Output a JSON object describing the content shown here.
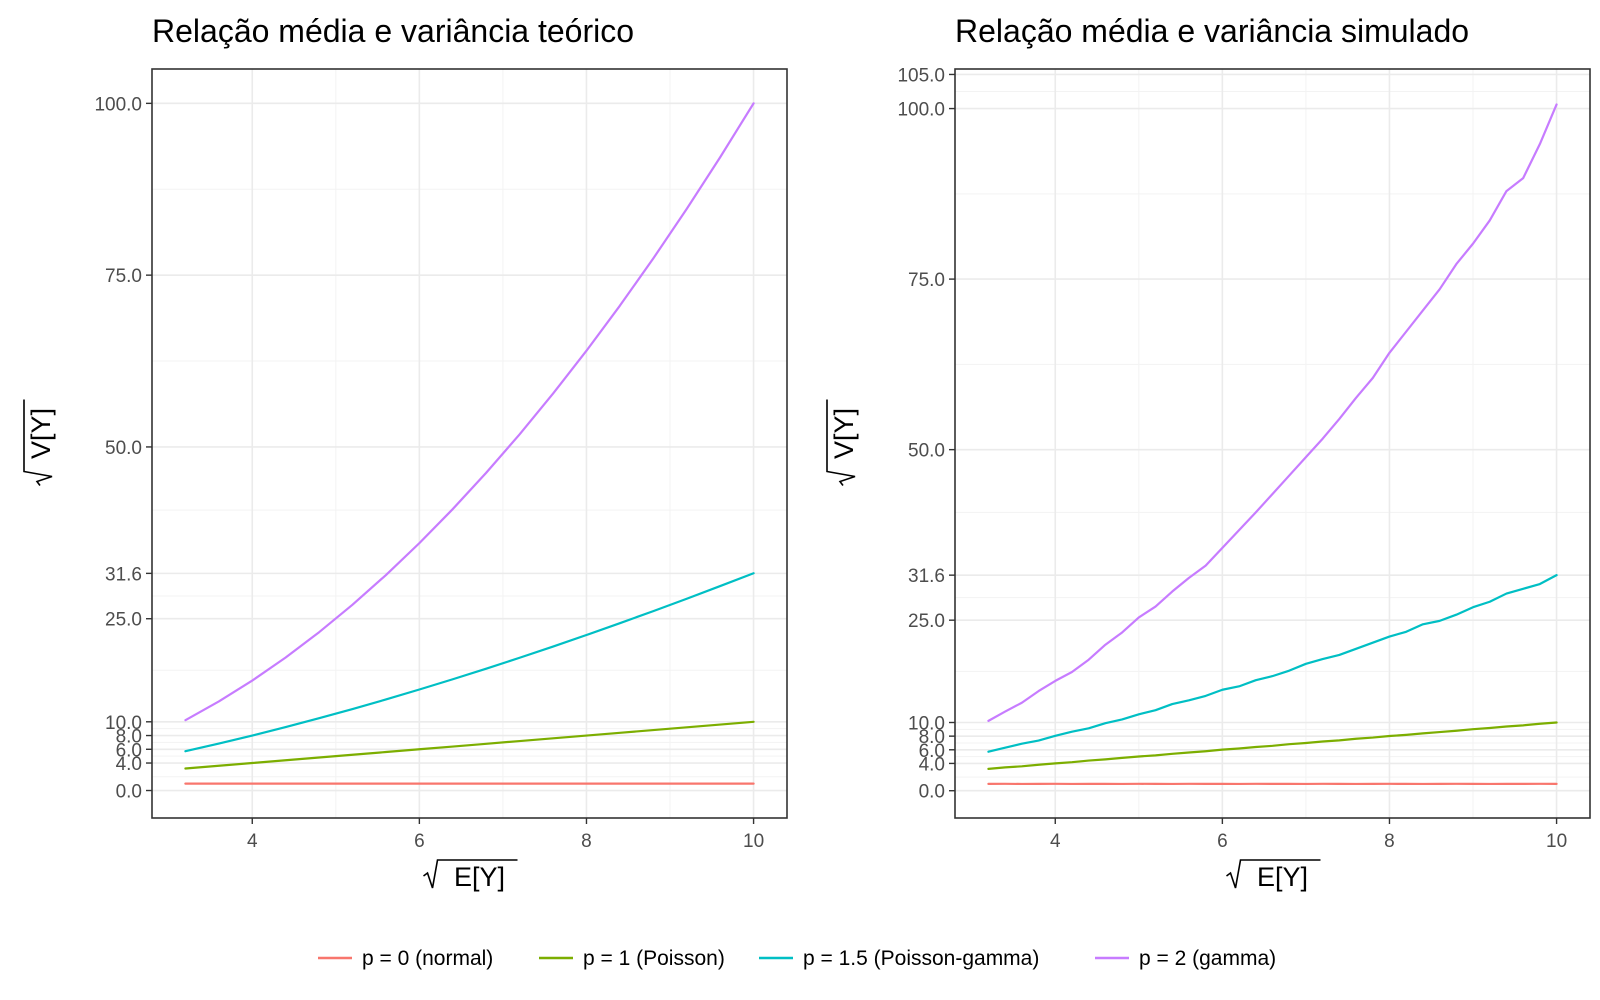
{
  "chart_data": [
    {
      "type": "line",
      "title": "Relação média e variância teórico",
      "xlabel": "E[Y]",
      "ylabel": "V[Y]",
      "xlim": [
        2.8,
        10.4
      ],
      "ylim": [
        -4,
        105
      ],
      "x_ticks": [
        "4",
        "6",
        "8",
        "10"
      ],
      "x_tick_values": [
        4,
        6,
        8,
        10
      ],
      "y_ticks": [
        "0.0",
        "4.0",
        "6.0",
        "8.0",
        "10.0",
        "25.0",
        "31.6",
        "50.0",
        "75.0",
        "100.0"
      ],
      "y_tick_values": [
        0,
        4,
        6,
        8,
        10,
        25,
        31.6,
        50,
        75,
        100
      ],
      "x": [
        3.2,
        3.6,
        4.0,
        4.4,
        4.8,
        5.2,
        5.6,
        6.0,
        6.4,
        6.8,
        7.2,
        7.6,
        8.0,
        8.4,
        8.8,
        9.2,
        9.6,
        10.0
      ],
      "series": [
        {
          "name": "p = 0 (normal)",
          "color": "#F8766D",
          "values": [
            1,
            1,
            1,
            1,
            1,
            1,
            1,
            1,
            1,
            1,
            1,
            1,
            1,
            1,
            1,
            1,
            1,
            1
          ]
        },
        {
          "name": "p = 1 (Poisson)",
          "color": "#7CAE00",
          "values": [
            3.2,
            3.6,
            4.0,
            4.4,
            4.8,
            5.2,
            5.6,
            6.0,
            6.4,
            6.8,
            7.2,
            7.6,
            8.0,
            8.4,
            8.8,
            9.2,
            9.6,
            10.0
          ]
        },
        {
          "name": "p = 1.5 (Poisson-gamma)",
          "color": "#00BFC4",
          "values": [
            5.72,
            6.83,
            8.0,
            9.23,
            10.52,
            11.86,
            13.25,
            14.7,
            16.19,
            17.73,
            19.32,
            20.95,
            22.63,
            24.35,
            26.11,
            27.91,
            29.75,
            31.62
          ]
        },
        {
          "name": "p = 2 (gamma)",
          "color": "#C77CFF",
          "values": [
            10.24,
            12.96,
            16.0,
            19.36,
            23.04,
            27.04,
            31.36,
            36.0,
            40.96,
            46.24,
            51.84,
            57.76,
            64.0,
            70.56,
            77.44,
            84.64,
            92.16,
            100.0
          ]
        }
      ]
    },
    {
      "type": "line",
      "title": "Relação média e variância simulado",
      "xlabel": "E[Y]",
      "ylabel": "V[Y]",
      "xlim": [
        2.8,
        10.4
      ],
      "ylim": [
        -4,
        105.8
      ],
      "x_ticks": [
        "4",
        "6",
        "8",
        "10"
      ],
      "x_tick_values": [
        4,
        6,
        8,
        10
      ],
      "y_ticks": [
        "0.0",
        "4.0",
        "6.0",
        "8.0",
        "10.0",
        "25.0",
        "31.6",
        "50.0",
        "75.0",
        "100.0",
        "105.0"
      ],
      "y_tick_values": [
        0,
        4,
        6,
        8,
        10,
        25,
        31.6,
        50,
        75,
        100,
        105
      ],
      "x": [
        3.2,
        3.4,
        3.6,
        3.8,
        4.0,
        4.2,
        4.4,
        4.6,
        4.8,
        5.0,
        5.2,
        5.4,
        5.6,
        5.8,
        6.0,
        6.2,
        6.4,
        6.6,
        6.8,
        7.0,
        7.2,
        7.4,
        7.6,
        7.8,
        8.0,
        8.2,
        8.4,
        8.6,
        8.8,
        9.0,
        9.2,
        9.4,
        9.6,
        9.8,
        10.0
      ],
      "series": [
        {
          "name": "p = 0 (normal)",
          "color": "#F8766D",
          "values": [
            1.0,
            1.01,
            0.99,
            1.0,
            1.01,
            0.99,
            1.0,
            1.0,
            0.99,
            1.01,
            1.0,
            0.99,
            1.01,
            1.0,
            1.0,
            0.99,
            1.01,
            1.0,
            1.0,
            0.99,
            1.01,
            1.0,
            0.99,
            1.0,
            1.01,
            1.0,
            0.99,
            1.0,
            1.01,
            1.0,
            0.99,
            1.0,
            1.0,
            1.01,
            1.0
          ]
        },
        {
          "name": "p = 1 (Poisson)",
          "color": "#7CAE00",
          "values": [
            3.2,
            3.42,
            3.58,
            3.81,
            4.01,
            4.18,
            4.42,
            4.59,
            4.81,
            5.02,
            5.18,
            5.41,
            5.6,
            5.79,
            6.02,
            6.19,
            6.41,
            6.58,
            6.82,
            6.99,
            7.21,
            7.38,
            7.62,
            7.79,
            8.02,
            8.19,
            8.41,
            8.6,
            8.79,
            9.02,
            9.19,
            9.41,
            9.58,
            9.82,
            10.0
          ]
        },
        {
          "name": "p = 1.5 (Poisson-gamma)",
          "color": "#00BFC4",
          "values": [
            5.72,
            6.3,
            6.9,
            7.35,
            8.05,
            8.65,
            9.15,
            9.9,
            10.45,
            11.2,
            11.8,
            12.7,
            13.25,
            13.9,
            14.8,
            15.3,
            16.2,
            16.8,
            17.6,
            18.6,
            19.3,
            19.9,
            20.8,
            21.7,
            22.6,
            23.3,
            24.4,
            24.9,
            25.8,
            26.9,
            27.7,
            28.9,
            29.6,
            30.3,
            31.6
          ]
        },
        {
          "name": "p = 2 (gamma)",
          "color": "#C77CFF",
          "values": [
            10.24,
            11.6,
            12.9,
            14.6,
            16.1,
            17.4,
            19.2,
            21.4,
            23.2,
            25.4,
            27.0,
            29.2,
            31.2,
            33.0,
            35.6,
            38.2,
            40.8,
            43.5,
            46.2,
            48.9,
            51.6,
            54.5,
            57.6,
            60.5,
            64.2,
            67.3,
            70.4,
            73.5,
            77.2,
            80.2,
            83.6,
            87.9,
            89.8,
            94.8,
            100.6
          ]
        }
      ]
    }
  ],
  "legend": {
    "position": "bottom",
    "items": [
      "p = 0 (normal)",
      "p = 1 (Poisson)",
      "p = 1.5 (Poisson-gamma)",
      "p = 2 (gamma)"
    ],
    "colors": [
      "#F8766D",
      "#7CAE00",
      "#00BFC4",
      "#C77CFF"
    ]
  }
}
